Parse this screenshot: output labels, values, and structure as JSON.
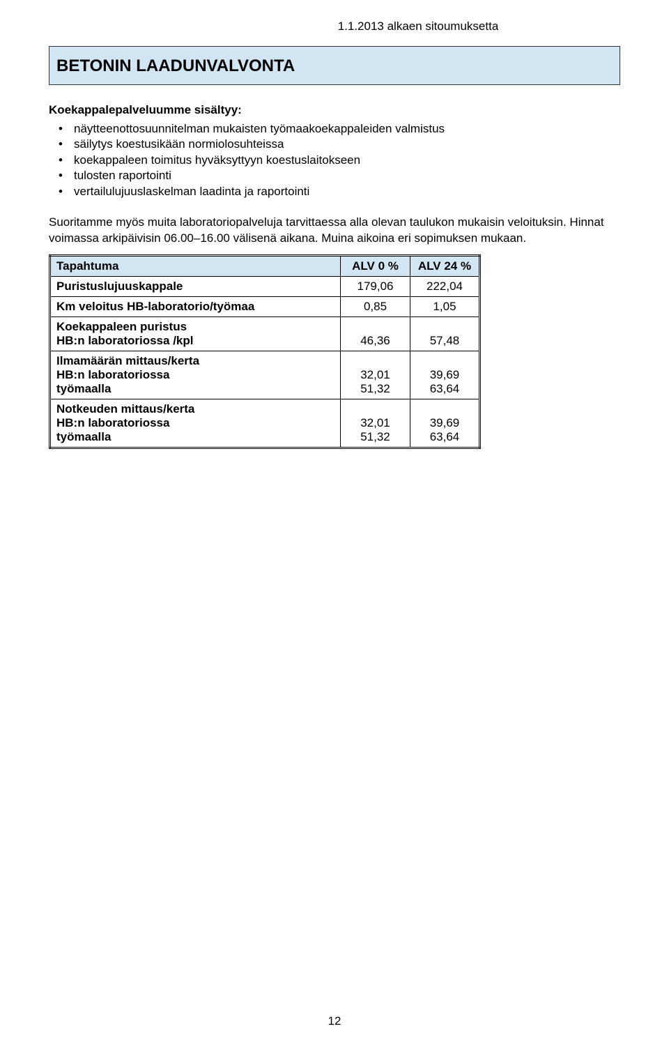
{
  "header_date": "1.1.2013 alkaen sitoumuksetta",
  "title": "BETONIN LAADUNVALVONTA",
  "intro_heading": "Koekappalepalveluumme sisältyy:",
  "bullets": [
    "näytteenottosuunnitelman mukaisten työmaakoekappaleiden valmistus",
    "säilytys koestusikään normiolosuhteissa",
    "koekappaleen toimitus hyväksyttyyn koestuslaitokseen",
    "tulosten raportointi",
    "vertailulujuuslaskelman laadinta ja raportointi"
  ],
  "paragraph": "Suoritamme myös muita laboratoriopalveluja tarvittaessa alla olevan taulukon mukaisin veloituksin. Hinnat voimassa arkipäivisin 06.00–16.00 välisenä aikana. Muina aikoina eri sopimuksen mukaan.",
  "table": {
    "columns": [
      "Tapahtuma",
      "ALV 0 %",
      "ALV 24 %"
    ],
    "rows": [
      {
        "label_main": "Puristuslujuuskappale",
        "sublines": [],
        "alv0": [
          "179,06"
        ],
        "alv24": [
          "222,04"
        ]
      },
      {
        "label_main": "Km veloitus HB-laboratorio/työmaa",
        "sublines": [],
        "alv0": [
          "0,85"
        ],
        "alv24": [
          "1,05"
        ]
      },
      {
        "label_main": "Koekappaleen puristus",
        "sublines": [
          "HB:n laboratoriossa /kpl"
        ],
        "alv0": [
          "46,36"
        ],
        "alv24": [
          "57,48"
        ],
        "bottom_align": true
      },
      {
        "label_main": "Ilmamäärän mittaus/kerta",
        "sublines": [
          "HB:n laboratoriossa",
          "työmaalla"
        ],
        "alv0": [
          "32,01",
          "51,32"
        ],
        "alv24": [
          "39,69",
          "63,64"
        ],
        "bottom_align": true
      },
      {
        "label_main": "Notkeuden mittaus/kerta",
        "sublines": [
          "HB:n laboratoriossa",
          "työmaalla"
        ],
        "alv0": [
          "32,01",
          "51,32"
        ],
        "alv24": [
          "39,69",
          "63,64"
        ],
        "bottom_align": true
      }
    ]
  },
  "page_number": "12",
  "colors": {
    "banner_bg": "#d2e5f2",
    "border": "#000000",
    "text": "#000000"
  }
}
